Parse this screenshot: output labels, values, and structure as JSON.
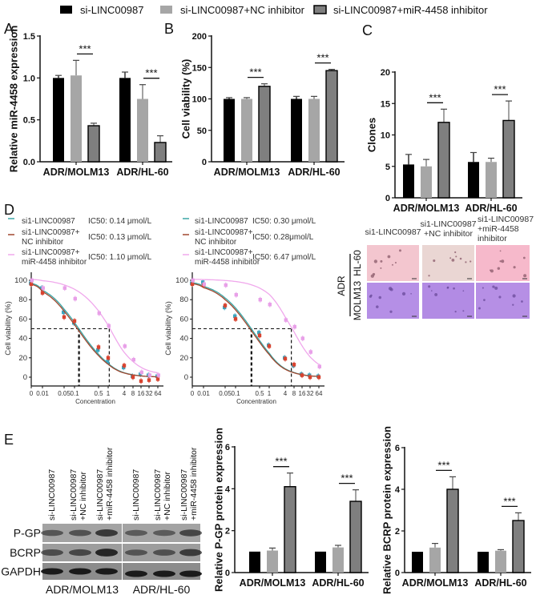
{
  "legend": {
    "items": [
      {
        "label": "si-LINC00987",
        "color": "#000000"
      },
      {
        "label": "si-LINC00987+NC inhibitor",
        "color": "#a6a6a6"
      },
      {
        "label": "si-LINC00987+miR-4458 inhibitor",
        "color": "#7f7f7f"
      }
    ]
  },
  "panel_labels": {
    "A": "A",
    "B": "B",
    "C": "C",
    "D": "D",
    "E": "E"
  },
  "chart_data": [
    {
      "id": "A",
      "type": "bar",
      "title": "",
      "xlabel": "",
      "ylabel": "Relative miR-4458 expression",
      "categories": [
        "ADR/MOLM13",
        "ADR/HL-60"
      ],
      "ylim": [
        0,
        1.5
      ],
      "yticks": [
        {
          "v": 0,
          "label": "0.0"
        },
        {
          "v": 0.5,
          "label": "0.5"
        },
        {
          "v": 1.0,
          "label": "1.0"
        },
        {
          "v": 1.5,
          "label": "1.5"
        }
      ],
      "series": [
        {
          "name": "si-LINC00987",
          "values": [
            1.0,
            1.0
          ],
          "errors": [
            0.03,
            0.07
          ]
        },
        {
          "name": "si-LINC00987+NC inhibitor",
          "values": [
            1.03,
            0.75
          ],
          "errors": [
            0.18,
            0.17
          ]
        },
        {
          "name": "si-LINC00987+miR-4458 inhibitor",
          "values": [
            0.43,
            0.23
          ],
          "errors": [
            0.03,
            0.08
          ]
        }
      ],
      "significance": [
        {
          "category": 0,
          "between": [
            1,
            2
          ],
          "label": "***"
        },
        {
          "category": 1,
          "between": [
            1,
            2
          ],
          "label": "***"
        }
      ]
    },
    {
      "id": "B",
      "type": "bar",
      "title": "",
      "xlabel": "",
      "ylabel": "Cell viability  (%)",
      "categories": [
        "ADR/MOLM13",
        "ADR/HL-60"
      ],
      "ylim": [
        0,
        200
      ],
      "yticks": [
        {
          "v": 0,
          "label": "0"
        },
        {
          "v": 50,
          "label": "50"
        },
        {
          "v": 100,
          "label": "100"
        },
        {
          "v": 150,
          "label": "150"
        },
        {
          "v": 200,
          "label": "200"
        }
      ],
      "series": [
        {
          "name": "si-LINC00987",
          "values": [
            100,
            100
          ],
          "errors": [
            2,
            4
          ]
        },
        {
          "name": "si-LINC00987+NC inhibitor",
          "values": [
            100,
            100
          ],
          "errors": [
            2,
            4
          ]
        },
        {
          "name": "si-LINC00987+miR-4458 inhibitor",
          "values": [
            120,
            145
          ],
          "errors": [
            4,
            2
          ]
        }
      ],
      "significance": [
        {
          "category": 0,
          "between": [
            1,
            2
          ],
          "label": "***"
        },
        {
          "category": 1,
          "between": [
            1,
            2
          ],
          "label": "***"
        }
      ]
    },
    {
      "id": "C",
      "type": "bar",
      "title": "",
      "xlabel": "",
      "ylabel": "Clones",
      "categories": [
        "ADR/MOLM13",
        "ADR/HL-60"
      ],
      "ylim": [
        0,
        20
      ],
      "yticks": [
        {
          "v": 0,
          "label": "0"
        },
        {
          "v": 5,
          "label": "5"
        },
        {
          "v": 10,
          "label": "10"
        },
        {
          "v": 15,
          "label": "15"
        },
        {
          "v": 20,
          "label": "20"
        }
      ],
      "series": [
        {
          "name": "si-LINC00987",
          "values": [
            5.3,
            5.7
          ],
          "errors": [
            1.6,
            1.5
          ]
        },
        {
          "name": "si-LINC00987+NC inhibitor",
          "values": [
            5.0,
            5.7
          ],
          "errors": [
            1.1,
            0.6
          ]
        },
        {
          "name": "si-LINC00987+miR-4458 inhibitor",
          "values": [
            12.0,
            12.3
          ],
          "errors": [
            2.1,
            3.1
          ]
        }
      ],
      "significance": [
        {
          "category": 0,
          "between": [
            1,
            2
          ],
          "label": "***"
        },
        {
          "category": 1,
          "between": [
            1,
            2
          ],
          "label": "***"
        }
      ]
    },
    {
      "id": "D-left",
      "type": "line",
      "xlabel": "Concentration",
      "ylabel": "Cell viability (%)",
      "xticks": [
        "0",
        "0.01",
        "0.05",
        "0.1",
        "0.5",
        "1",
        "4",
        "8",
        "16",
        "32",
        "64"
      ],
      "x": [
        0,
        0.01,
        0.05,
        0.1,
        0.5,
        1,
        4,
        8,
        16,
        32,
        64
      ],
      "ylim": [
        0,
        100
      ],
      "yticks": [
        0,
        20,
        40,
        60,
        80,
        100
      ],
      "series": [
        {
          "name_lines": [
            "si1-LINC00987"
          ],
          "ic50_label": "IC50: 0.14 μmol/L",
          "ic50": 0.14,
          "color": "#3aa6a6",
          "point_color": "#3aa6c0",
          "values": [
            97,
            92,
            67,
            56,
            28,
            16,
            10,
            1,
            3,
            2,
            1
          ]
        },
        {
          "name_lines": [
            "si1-LINC00987+",
            "NC inhibitor"
          ],
          "ic50_label": "IC50: 0.13 μmol/L",
          "ic50": 0.13,
          "color": "#a0472f",
          "point_color": "#d9432f",
          "values": [
            96,
            87,
            62,
            58,
            31,
            20,
            12,
            0,
            -4,
            -3,
            -2
          ]
        },
        {
          "name_lines": [
            "si1-LINC00987+",
            "miR-4458 inhibitor"
          ],
          "ic50_label": "IC50: 1.10 μmol/L",
          "ic50": 1.1,
          "color": "#f0a8ec",
          "point_color": "#e8a0e8",
          "values": [
            100,
            92,
            92,
            81,
            66,
            53,
            32,
            18,
            5,
            2,
            2
          ]
        }
      ]
    },
    {
      "id": "D-right",
      "type": "line",
      "xlabel": "Concentration",
      "ylabel": "Cell viability (%)",
      "xticks": [
        "0",
        "0.01",
        "0.05",
        "0.1",
        "0.5",
        "1",
        "4",
        "8",
        "16",
        "32",
        "64"
      ],
      "x": [
        0,
        0.01,
        0.05,
        0.1,
        0.5,
        1,
        4,
        8,
        16,
        32,
        64
      ],
      "ylim": [
        0,
        100
      ],
      "yticks": [
        0,
        20,
        40,
        60,
        80,
        100
      ],
      "series": [
        {
          "name_lines": [
            "si1-LINC00987"
          ],
          "ic50_label": "IC50: 0.30 μmol/L",
          "ic50": 0.3,
          "color": "#3aa6a6",
          "point_color": "#3aa6c0",
          "values": [
            97,
            98,
            72,
            63,
            46,
            33,
            20,
            12,
            3,
            2,
            1
          ]
        },
        {
          "name_lines": [
            "si1-LINC00987+",
            "NC inhibitor"
          ],
          "ic50_label": "IC50: 0.28μmol/L",
          "ic50": 0.28,
          "color": "#a0472f",
          "point_color": "#d9432f",
          "values": [
            96,
            95,
            74,
            60,
            43,
            32,
            19,
            13,
            2,
            0,
            0
          ]
        },
        {
          "name_lines": [
            "si1-LINC00987+",
            "miR-4458 inhibitor"
          ],
          "ic50_label": "IC50: 6.47 μmol/L",
          "ic50": 6.47,
          "color": "#f0a8ec",
          "point_color": "#e8a0e8",
          "values": [
            100,
            96,
            95,
            85,
            80,
            75,
            59,
            52,
            40,
            26,
            11
          ]
        }
      ]
    },
    {
      "id": "E-PGP",
      "type": "bar",
      "title": "",
      "xlabel": "",
      "ylabel": "Relative P-GP protein expression",
      "categories": [
        "ADR/MOLM13",
        "ADR/HL-60"
      ],
      "ylim": [
        0,
        6
      ],
      "yticks": [
        {
          "v": 0,
          "label": "0"
        },
        {
          "v": 2,
          "label": "2"
        },
        {
          "v": 4,
          "label": "4"
        },
        {
          "v": 6,
          "label": "6"
        }
      ],
      "series": [
        {
          "name": "si-LINC00987",
          "values": [
            1.0,
            1.0
          ],
          "errors": [
            0,
            0
          ]
        },
        {
          "name": "si-LINC00987+NC inhibitor",
          "values": [
            1.05,
            1.2
          ],
          "errors": [
            0.12,
            0.1
          ]
        },
        {
          "name": "si-LINC00987+miR-4458 inhibitor",
          "values": [
            4.1,
            3.4
          ],
          "errors": [
            0.65,
            0.55
          ]
        }
      ],
      "significance": [
        {
          "category": 0,
          "between": [
            1,
            2
          ],
          "label": "***"
        },
        {
          "category": 1,
          "between": [
            1,
            2
          ],
          "label": "***"
        }
      ]
    },
    {
      "id": "E-BCRP",
      "type": "bar",
      "title": "",
      "xlabel": "",
      "ylabel": "Relative BCRP protein expression",
      "categories": [
        "ADR/MOLM13",
        "ADR/HL-60"
      ],
      "ylim": [
        0,
        6
      ],
      "yticks": [
        {
          "v": 0,
          "label": "0"
        },
        {
          "v": 2,
          "label": "2"
        },
        {
          "v": 4,
          "label": "4"
        },
        {
          "v": 6,
          "label": "6"
        }
      ],
      "series": [
        {
          "name": "si-LINC00987",
          "values": [
            1.0,
            1.0
          ],
          "errors": [
            0,
            0
          ]
        },
        {
          "name": "si-LINC00987+NC inhibitor",
          "values": [
            1.2,
            1.05
          ],
          "errors": [
            0.2,
            0.05
          ]
        },
        {
          "name": "si-LINC00987+miR-4458 inhibitor",
          "values": [
            4.0,
            2.5
          ],
          "errors": [
            0.6,
            0.37
          ]
        }
      ],
      "significance": [
        {
          "category": 0,
          "between": [
            1,
            2
          ],
          "label": "***"
        },
        {
          "category": 1,
          "between": [
            1,
            2
          ],
          "label": "***"
        }
      ]
    }
  ],
  "colony": {
    "headers": [
      [
        "si1-LINC00987"
      ],
      [
        "si1-LINC00987",
        "+NC inhibitor"
      ],
      [
        "si1-LINC00987",
        "+miR-4458",
        "inhibitor"
      ]
    ],
    "group_label": "ADR",
    "rows": [
      {
        "label": "HL-60",
        "colors": [
          "#f3c6cf",
          "#ead6d3",
          "#f6b9cb"
        ]
      },
      {
        "label": "MOLM13",
        "colors": [
          "#b58fe6",
          "#b28be4",
          "#b68fe5"
        ]
      }
    ]
  },
  "western_blot": {
    "lanes": [
      [
        "si-LINC00987"
      ],
      [
        "si-LINC00987",
        "+NC inhibitor"
      ],
      [
        "si-LINC00987",
        "+miR-4458 inhibitor"
      ]
    ],
    "proteins": [
      "P-GP",
      "BCRP",
      "GAPDH"
    ],
    "groups": [
      "ADR/MOLM13",
      "ADR/HL-60"
    ]
  }
}
